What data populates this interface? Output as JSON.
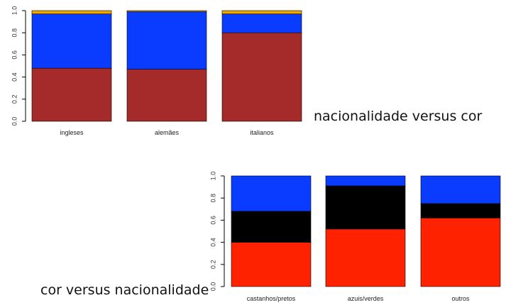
{
  "captions": {
    "top": "nacionalidade versus cor",
    "bottom": "cor versus nacionalidade"
  },
  "chart_data": [
    {
      "type": "bar",
      "stacked": true,
      "categories": [
        "ingleses",
        "alemães",
        "italianos"
      ],
      "series": [
        {
          "color": "#a52a2a",
          "values": [
            0.48,
            0.47,
            0.8
          ]
        },
        {
          "color": "#0a3cff",
          "values": [
            0.49,
            0.52,
            0.17
          ]
        },
        {
          "color": "#f0a800",
          "values": [
            0.03,
            0.01,
            0.03
          ]
        }
      ],
      "ylim": [
        0,
        1
      ],
      "yticks": [
        "0.0",
        "0.2",
        "0.4",
        "0.6",
        "0.8",
        "1.0"
      ],
      "grid": false
    },
    {
      "type": "bar",
      "stacked": true,
      "categories": [
        "castanhos/pretos",
        "azuis/verdes",
        "outros"
      ],
      "series": [
        {
          "color": "#ff2200",
          "values": [
            0.4,
            0.52,
            0.62
          ]
        },
        {
          "color": "#000000",
          "values": [
            0.28,
            0.39,
            0.13
          ]
        },
        {
          "color": "#0a3cff",
          "values": [
            0.32,
            0.09,
            0.25
          ]
        }
      ],
      "ylim": [
        0,
        1
      ],
      "yticks": [
        "0.0",
        "0.2",
        "0.4",
        "0.6",
        "0.8",
        "1.0"
      ],
      "grid": false
    }
  ]
}
